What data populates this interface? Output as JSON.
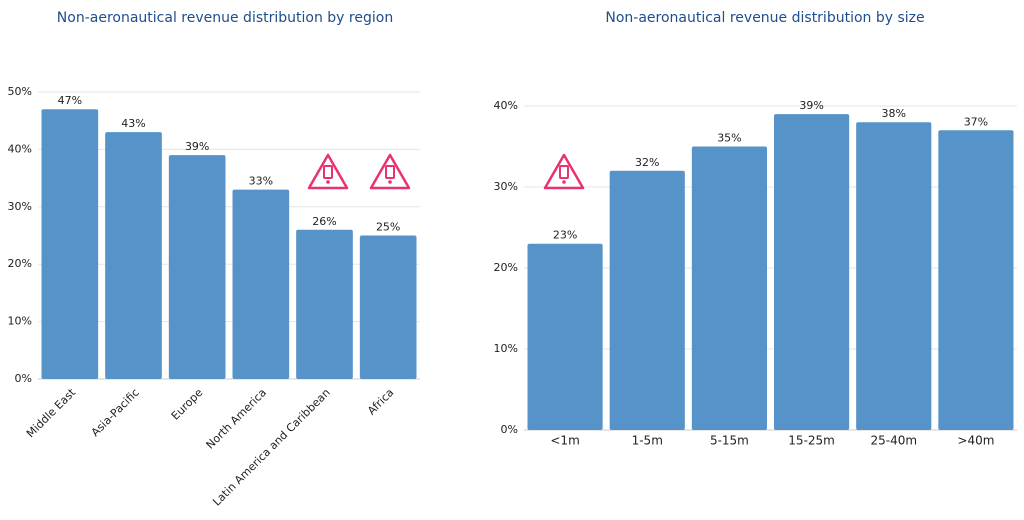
{
  "chart_data": [
    {
      "type": "bar",
      "title": "Non-aeronautical revenue distribution by region",
      "categories": [
        "Middle East",
        "Asia-Pacific",
        "Europe",
        "North America",
        "Latin America and Caribbean",
        "Africa"
      ],
      "values": [
        47,
        43,
        39,
        33,
        26,
        25
      ],
      "value_labels": [
        "47%",
        "43%",
        "39%",
        "33%",
        "26%",
        "25%"
      ],
      "color": "#5593c9",
      "ylim": [
        0,
        50
      ],
      "yticks": [
        {
          "value": 0,
          "label": "0%"
        },
        {
          "value": 10,
          "label": "10%"
        },
        {
          "value": 20,
          "label": "20%"
        },
        {
          "value": 30,
          "label": "30%"
        },
        {
          "value": 40,
          "label": "40%"
        },
        {
          "value": 50,
          "label": "50%"
        }
      ],
      "grid": true
    },
    {
      "type": "bar",
      "title": "Non-aeronautical revenue distribution by size",
      "categories": [
        "<1m",
        "1-5m",
        "5-15m",
        "15-25m",
        "25-40m",
        ">40m"
      ],
      "values": [
        23,
        32,
        35,
        39,
        38,
        37
      ],
      "value_labels": [
        "23%",
        "32%",
        "35%",
        "39%",
        "38%",
        "37%"
      ],
      "color": "#5593c9",
      "ylim": [
        0,
        40
      ],
      "yticks": [
        {
          "value": 0,
          "label": "0%"
        },
        {
          "value": 10,
          "label": "10%"
        },
        {
          "value": 20,
          "label": "20%"
        },
        {
          "value": 30,
          "label": "30%"
        },
        {
          "value": 40,
          "label": "40%"
        }
      ],
      "grid": true
    }
  ]
}
